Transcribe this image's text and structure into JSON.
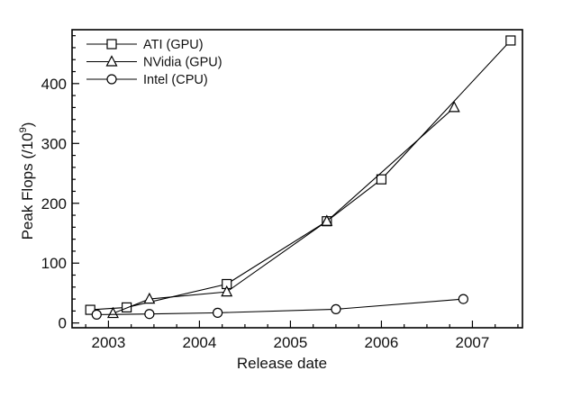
{
  "chart_data": {
    "type": "line",
    "xlabel": "Release date",
    "ylabel": "Peak Flops (/10",
    "ylabel_sup": "9",
    "ylabel_close": ")",
    "xlim": [
      2002.6,
      2007.55
    ],
    "ylim": [
      -8,
      490
    ],
    "x_ticks": [
      2003,
      2004,
      2005,
      2006,
      2007
    ],
    "x_tick_labels": [
      "2003",
      "2004",
      "2005",
      "2006",
      "2007"
    ],
    "y_ticks": [
      0,
      100,
      200,
      300,
      400
    ],
    "y_tick_labels": [
      "0",
      "100",
      "200",
      "300",
      "400"
    ],
    "legend_position": "top-left",
    "series": [
      {
        "name": "ATI (GPU)",
        "marker": "square",
        "x": [
          2002.8,
          2003.2,
          2004.3,
          2005.4,
          2006.0,
          2007.42
        ],
        "y": [
          22,
          26,
          65,
          170,
          240,
          472
        ]
      },
      {
        "name": "NVidia (GPU)",
        "marker": "triangle",
        "x": [
          2003.05,
          2003.45,
          2004.3,
          2005.4,
          2006.8
        ],
        "y": [
          16,
          40,
          52,
          170,
          360
        ]
      },
      {
        "name": "Intel (CPU)",
        "marker": "circle",
        "x": [
          2002.87,
          2003.45,
          2004.2,
          2005.5,
          2006.9
        ],
        "y": [
          14,
          15,
          17,
          23,
          40
        ]
      }
    ]
  }
}
